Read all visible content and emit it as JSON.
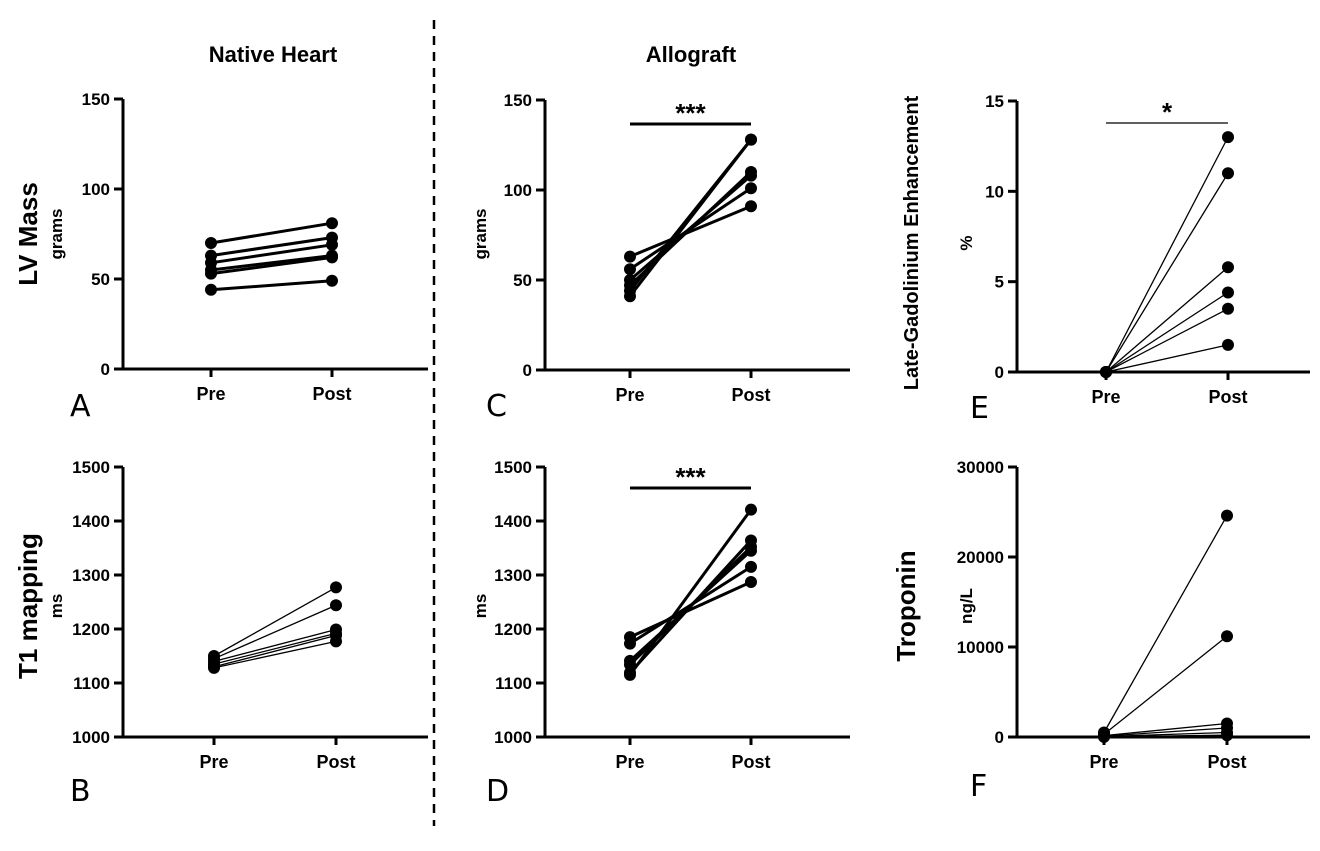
{
  "column_titles": {
    "native": "Native Heart",
    "allograft": "Allograft"
  },
  "row_titles": {
    "lv_mass": "LV Mass",
    "t1": "T1 mapping",
    "lge": "Late-Gadolinium Enhancement",
    "troponin": "Troponin"
  },
  "chart_data": [
    {
      "id": "A",
      "type": "line",
      "panel_label": "A",
      "ylabel": "grams",
      "categories": [
        "Pre",
        "Post"
      ],
      "ylim": [
        0,
        150
      ],
      "yticks": [
        "0",
        "50",
        "100",
        "150"
      ],
      "significance": "",
      "series": [
        {
          "values": [
            70,
            81
          ]
        },
        {
          "values": [
            63,
            73
          ]
        },
        {
          "values": [
            59,
            69
          ]
        },
        {
          "values": [
            55,
            63
          ]
        },
        {
          "values": [
            53,
            62
          ]
        },
        {
          "values": [
            44,
            49
          ]
        }
      ]
    },
    {
      "id": "B",
      "type": "line",
      "panel_label": "B",
      "ylabel": "ms",
      "categories": [
        "Pre",
        "Post"
      ],
      "ylim": [
        1000,
        1500
      ],
      "yticks": [
        "1000",
        "1100",
        "1200",
        "1300",
        "1400",
        "1500"
      ],
      "significance": "",
      "series": [
        {
          "values": [
            1150,
            1277
          ]
        },
        {
          "values": [
            1145,
            1244
          ]
        },
        {
          "values": [
            1140,
            1199
          ]
        },
        {
          "values": [
            1135,
            1192
          ]
        },
        {
          "values": [
            1130,
            1188
          ]
        },
        {
          "values": [
            1128,
            1177
          ]
        }
      ]
    },
    {
      "id": "C",
      "type": "line",
      "panel_label": "C",
      "ylabel": "grams",
      "categories": [
        "Pre",
        "Post"
      ],
      "ylim": [
        0,
        150
      ],
      "yticks": [
        "0",
        "50",
        "100",
        "150"
      ],
      "significance": "***",
      "series": [
        {
          "values": [
            63,
            91
          ]
        },
        {
          "values": [
            56,
            101
          ]
        },
        {
          "values": [
            50,
            108
          ]
        },
        {
          "values": [
            47,
            110
          ]
        },
        {
          "values": [
            44,
            128
          ]
        },
        {
          "values": [
            41,
            128
          ]
        }
      ]
    },
    {
      "id": "D",
      "type": "line",
      "panel_label": "D",
      "ylabel": "ms",
      "categories": [
        "Pre",
        "Post"
      ],
      "ylim": [
        1000,
        1500
      ],
      "yticks": [
        "1000",
        "1100",
        "1200",
        "1300",
        "1400",
        "1500"
      ],
      "significance": "***",
      "series": [
        {
          "values": [
            1185,
            1287
          ]
        },
        {
          "values": [
            1173,
            1315
          ]
        },
        {
          "values": [
            1141,
            1345
          ]
        },
        {
          "values": [
            1134,
            1352
          ]
        },
        {
          "values": [
            1119,
            1364
          ]
        },
        {
          "values": [
            1115,
            1421
          ]
        }
      ]
    },
    {
      "id": "E",
      "type": "line",
      "panel_label": "E",
      "ylabel": "%",
      "categories": [
        "Pre",
        "Post"
      ],
      "ylim": [
        0,
        15
      ],
      "yticks": [
        "0",
        "5",
        "10",
        "15"
      ],
      "significance": "*",
      "series": [
        {
          "values": [
            0,
            13
          ]
        },
        {
          "values": [
            0,
            11
          ]
        },
        {
          "values": [
            0,
            5.8
          ]
        },
        {
          "values": [
            0,
            4.4
          ]
        },
        {
          "values": [
            0,
            3.5
          ]
        },
        {
          "values": [
            0,
            1.5
          ]
        }
      ]
    },
    {
      "id": "F",
      "type": "line",
      "panel_label": "F",
      "ylabel": "ng/L",
      "categories": [
        "Pre",
        "Post"
      ],
      "ylim": [
        0,
        30000
      ],
      "yticks": [
        "0",
        "10000",
        "20000",
        "30000"
      ],
      "significance": "",
      "series": [
        {
          "values": [
            500,
            24600
          ]
        },
        {
          "values": [
            300,
            11200
          ]
        },
        {
          "values": [
            150,
            1500
          ]
        },
        {
          "values": [
            100,
            1000
          ]
        },
        {
          "values": [
            50,
            500
          ]
        },
        {
          "values": [
            20,
            200
          ]
        }
      ]
    }
  ]
}
